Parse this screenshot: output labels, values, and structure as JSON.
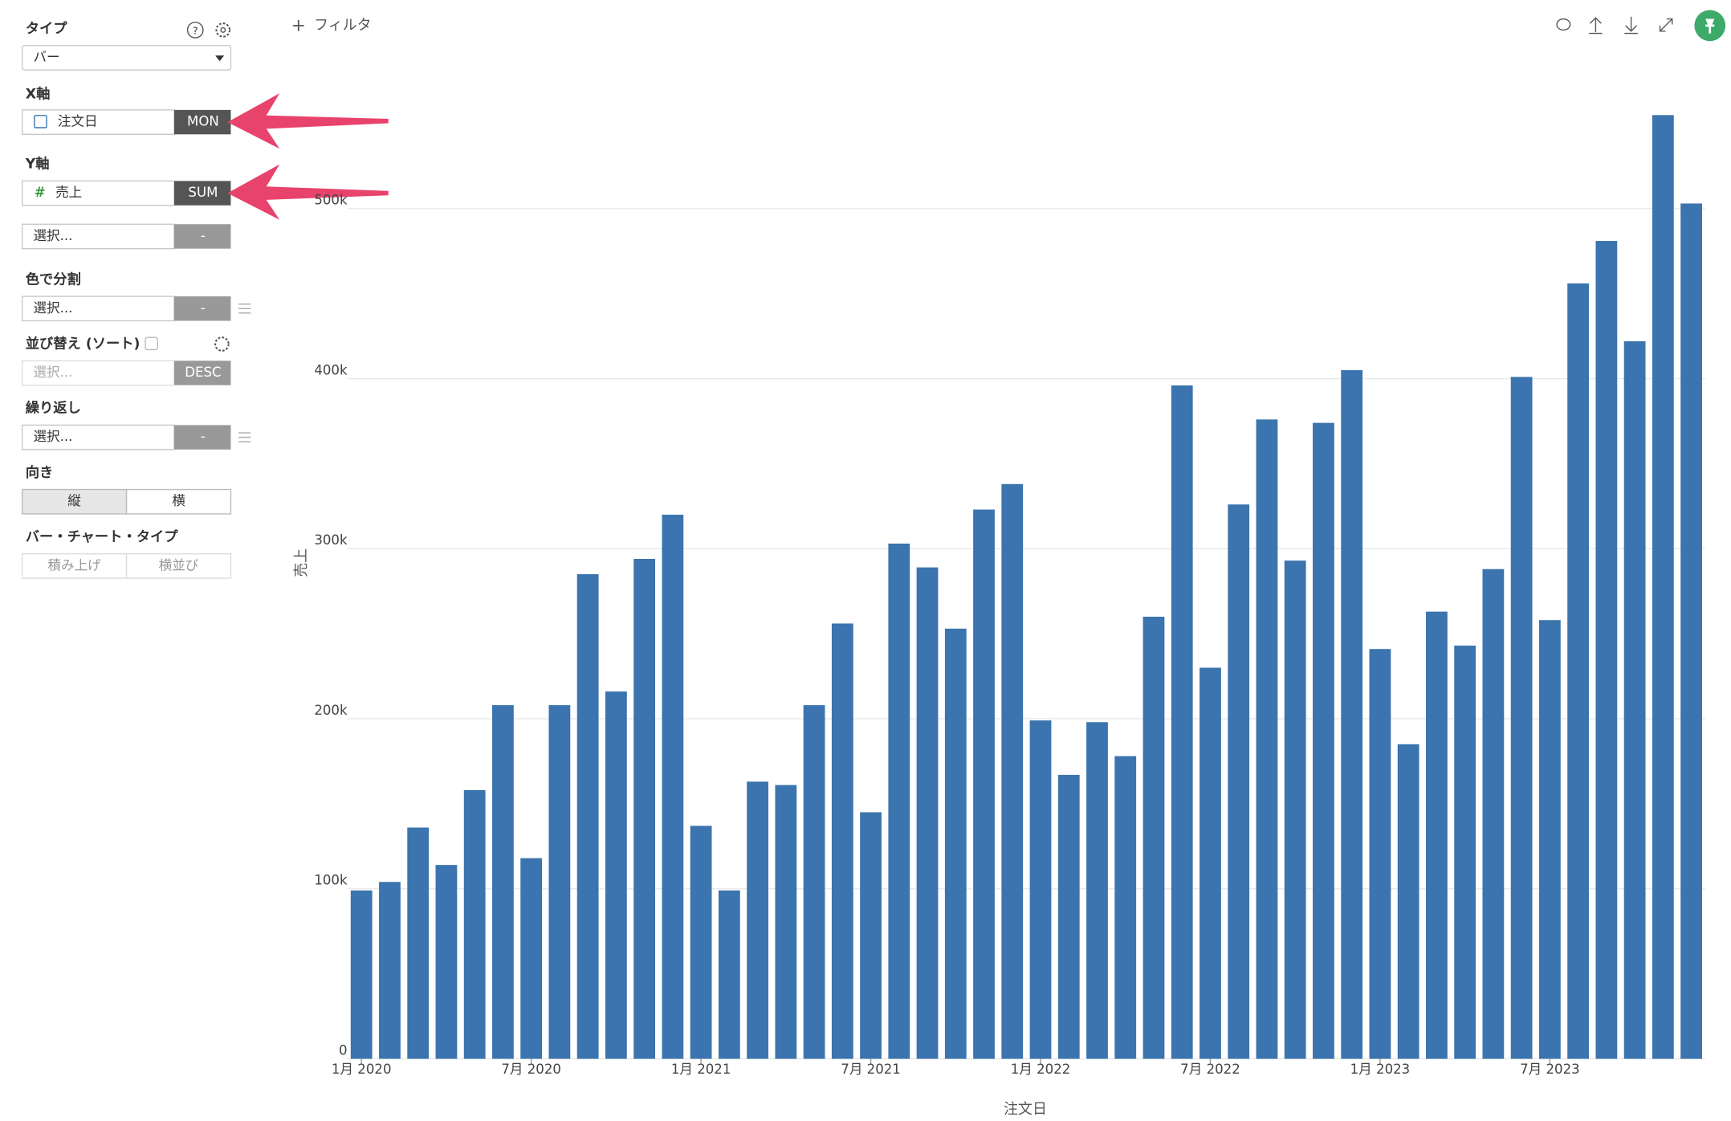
{
  "sidebar": {
    "type_label": "タイプ",
    "type_value": "バー",
    "x_label": "X軸",
    "x_field": "注文日",
    "x_agg": "MON",
    "y_label": "Y軸",
    "y_field": "売上",
    "y_agg": "SUM",
    "y2_field": "選択...",
    "y2_agg": "-",
    "color_label": "色で分割",
    "color_field": "選択...",
    "color_agg": "-",
    "sort_label": "並び替え (ソート)",
    "sort_field": "選択...",
    "sort_order": "DESC",
    "repeat_label": "繰り返し",
    "repeat_field": "選択...",
    "repeat_agg": "-",
    "orient_label": "向き",
    "orient_options": [
      "縦",
      "横"
    ],
    "bar_type_label": "バー・チャート・タイプ",
    "bar_type_options": [
      "積み上げ",
      "横並び"
    ]
  },
  "toolbar": {
    "filter": "フィルタ"
  },
  "chart_data": {
    "type": "bar",
    "color": "#3b74ae",
    "x_label": "注文日",
    "y_label": "売上",
    "categories": [
      "1月 2020",
      null,
      null,
      null,
      null,
      null,
      "7月 2020",
      null,
      null,
      null,
      null,
      null,
      "1月 2021",
      null,
      null,
      null,
      null,
      null,
      "7月 2021",
      null,
      null,
      null,
      null,
      null,
      "1月 2022",
      null,
      null,
      null,
      null,
      null,
      "7月 2022",
      null,
      null,
      null,
      null,
      null,
      "1月 2023",
      null,
      null,
      null,
      null,
      null,
      "7月 2023",
      null,
      null,
      null,
      null,
      null
    ],
    "values": [
      99000,
      104000,
      136000,
      114000,
      158000,
      208000,
      118000,
      208000,
      285000,
      216000,
      294000,
      320000,
      137000,
      99000,
      163000,
      161000,
      208000,
      256000,
      145000,
      303000,
      289000,
      253000,
      323000,
      338000,
      199000,
      167000,
      198000,
      178000,
      260000,
      396000,
      230000,
      326000,
      376000,
      293000,
      374000,
      405000,
      241000,
      185000,
      263000,
      243000,
      288000,
      401000,
      258000,
      456000,
      481000,
      422000,
      555000,
      503000
    ],
    "ylim": [
      0,
      560000
    ],
    "yticks": [
      0,
      {
        "value": 100000,
        "label": "100k"
      },
      {
        "value": 200000,
        "label": "200k"
      },
      {
        "value": 300000,
        "label": "300k"
      },
      {
        "value": 400000,
        "label": "400k"
      },
      {
        "value": 500000,
        "label": "500k"
      }
    ],
    "grid": true
  }
}
